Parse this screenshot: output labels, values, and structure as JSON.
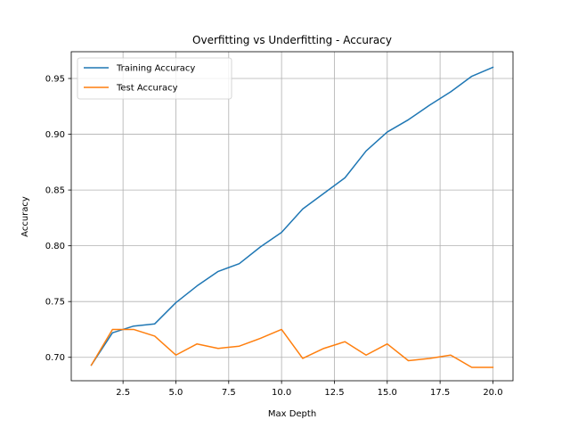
{
  "chart_data": {
    "type": "line",
    "title": "Overfitting vs Underfitting - Accuracy",
    "xlabel": "Max Depth",
    "ylabel": "Accuracy",
    "xlim": [
      0.05,
      20.95
    ],
    "ylim": [
      0.679,
      0.974
    ],
    "grid": true,
    "legend_position": "top-left",
    "x_ticks": [
      2.5,
      5.0,
      7.5,
      10.0,
      12.5,
      15.0,
      17.5,
      20.0
    ],
    "x_tick_labels": [
      "2.5",
      "5.0",
      "7.5",
      "10.0",
      "12.5",
      "15.0",
      "17.5",
      "20.0"
    ],
    "y_ticks": [
      0.7,
      0.75,
      0.8,
      0.85,
      0.9,
      0.95
    ],
    "y_tick_labels": [
      "0.70",
      "0.75",
      "0.80",
      "0.85",
      "0.90",
      "0.95"
    ],
    "x": [
      1,
      2,
      3,
      4,
      5,
      6,
      7,
      8,
      9,
      10,
      11,
      12,
      13,
      14,
      15,
      16,
      17,
      18,
      19,
      20
    ],
    "series": [
      {
        "name": "Training Accuracy",
        "color": "#1f77b4",
        "values": [
          0.693,
          0.722,
          0.728,
          0.73,
          0.749,
          0.764,
          0.777,
          0.784,
          0.799,
          0.812,
          0.833,
          0.847,
          0.861,
          0.885,
          0.902,
          0.913,
          0.926,
          0.938,
          0.952,
          0.96
        ]
      },
      {
        "name": "Test Accuracy",
        "color": "#ff7f0e",
        "values": [
          0.693,
          0.725,
          0.725,
          0.719,
          0.702,
          0.712,
          0.708,
          0.71,
          0.717,
          0.725,
          0.699,
          0.708,
          0.714,
          0.702,
          0.712,
          0.697,
          0.699,
          0.702,
          0.691,
          0.691
        ]
      }
    ]
  }
}
